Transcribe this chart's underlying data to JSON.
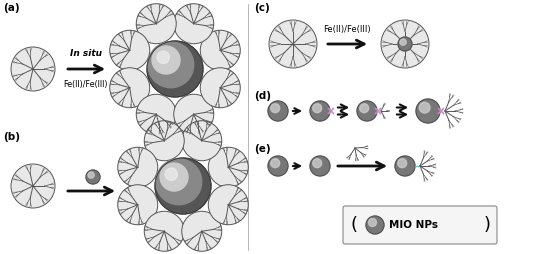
{
  "bg_color": "#ffffff",
  "panel_labels": [
    "(a)",
    "(b)",
    "(c)",
    "(d)",
    "(e)"
  ],
  "arrow_color": "#111111",
  "italic_text": "In situ",
  "fe_text": "Fe(II)/Fe(III)",
  "legend_text": "MIO NPs",
  "np_base": "#666666",
  "np_highlight": "#dddddd",
  "np_dark_base": "#444444",
  "dendrimer_ec": "#555555",
  "dendrimer_fc": "#e8e8e8",
  "pink_color": "#cc88cc"
}
